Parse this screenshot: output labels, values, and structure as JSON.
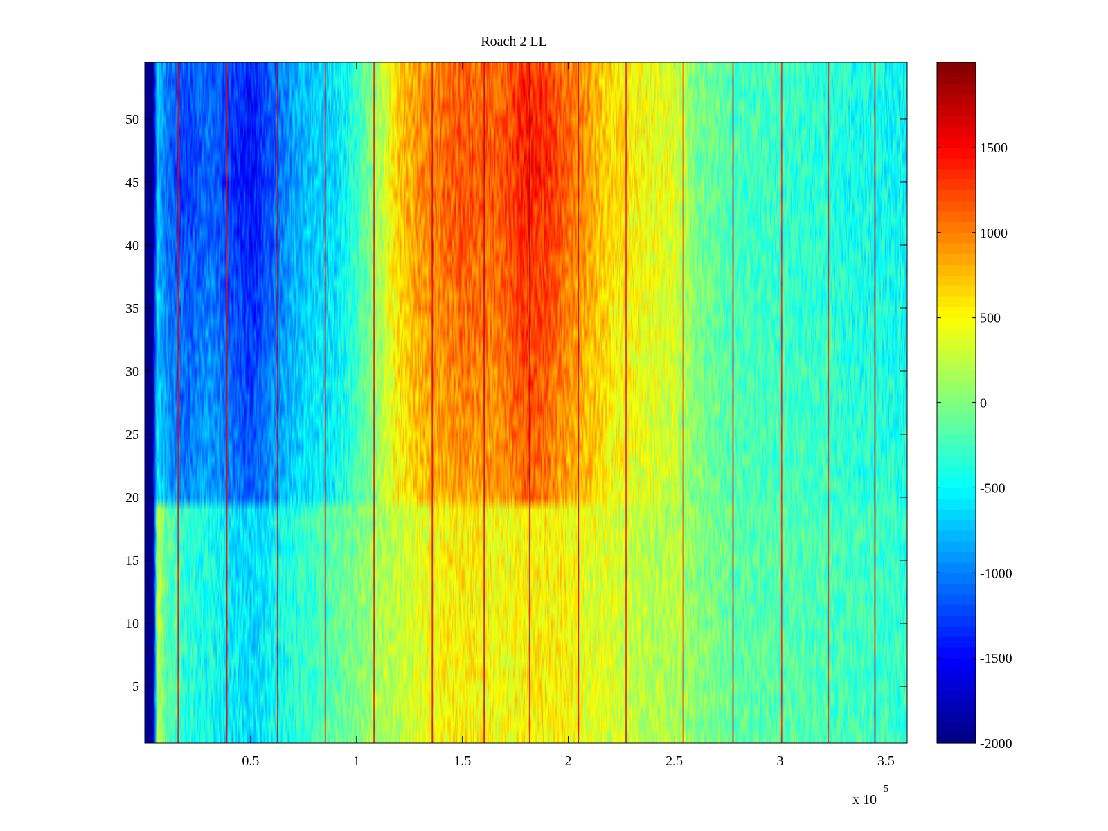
{
  "chart_data": {
    "type": "heatmap",
    "title": "Roach 2 LL",
    "xlabel": "",
    "ylabel": "",
    "x_exponent_label": "x 10",
    "x_exponent_power": "5",
    "xlim": [
      0,
      3.6
    ],
    "ylim": [
      0.5,
      54.5
    ],
    "rows": 54,
    "columns": 720,
    "colormap": "jet",
    "clim": [
      -2000,
      2000
    ],
    "xticks": [
      {
        "value": 0.5,
        "label": "0.5"
      },
      {
        "value": 1,
        "label": "1"
      },
      {
        "value": 1.5,
        "label": "1.5"
      },
      {
        "value": 2,
        "label": "2"
      },
      {
        "value": 2.5,
        "label": "2.5"
      },
      {
        "value": 3,
        "label": "3"
      },
      {
        "value": 3.5,
        "label": "3.5"
      }
    ],
    "yticks": [
      {
        "value": 5,
        "label": "5"
      },
      {
        "value": 10,
        "label": "10"
      },
      {
        "value": 15,
        "label": "15"
      },
      {
        "value": 20,
        "label": "20"
      },
      {
        "value": 25,
        "label": "25"
      },
      {
        "value": 30,
        "label": "30"
      },
      {
        "value": 35,
        "label": "35"
      },
      {
        "value": 40,
        "label": "40"
      },
      {
        "value": 45,
        "label": "45"
      },
      {
        "value": 50,
        "label": "50"
      }
    ],
    "colorbar_ticks": [
      {
        "value": -2000,
        "label": "-2000"
      },
      {
        "value": -1500,
        "label": "-1500"
      },
      {
        "value": -1000,
        "label": "-1000"
      },
      {
        "value": -500,
        "label": "-500"
      },
      {
        "value": 0,
        "label": "0"
      },
      {
        "value": 500,
        "label": "500"
      },
      {
        "value": 1000,
        "label": "1000"
      },
      {
        "value": 1500,
        "label": "1500"
      }
    ],
    "column_profile": {
      "x": [
        0,
        0.04,
        0.06,
        0.1,
        0.2,
        0.3,
        0.4,
        0.5,
        0.6,
        0.7,
        0.8,
        0.9,
        1.0,
        1.1,
        1.2,
        1.3,
        1.4,
        1.5,
        1.6,
        1.7,
        1.8,
        1.9,
        2.0,
        2.1,
        2.2,
        2.3,
        2.4,
        2.5,
        2.6,
        2.8,
        3.0,
        3.2,
        3.4,
        3.6
      ],
      "lower_rows_value": [
        -2000,
        -2000,
        300,
        -150,
        -350,
        -400,
        -550,
        -650,
        -500,
        -350,
        -250,
        -150,
        0,
        150,
        250,
        400,
        500,
        550,
        500,
        450,
        500,
        550,
        500,
        400,
        350,
        250,
        200,
        200,
        50,
        -150,
        -150,
        -200,
        -250,
        -300
      ],
      "upper_rows_value": [
        -2000,
        -2000,
        -700,
        -1100,
        -1300,
        -1100,
        -1300,
        -1500,
        -1200,
        -900,
        -700,
        -650,
        -300,
        150,
        700,
        950,
        1100,
        1200,
        1150,
        1200,
        1450,
        1350,
        1100,
        900,
        650,
        550,
        450,
        400,
        0,
        -250,
        -300,
        -350,
        -450,
        -500
      ]
    },
    "row_split_at": 19.5,
    "upper_rows_peak_row": 46,
    "cell_noise_amplitude": 280,
    "stripe_columns": [
      {
        "x": 0.155,
        "value": 1700
      },
      {
        "x": 0.385,
        "value": 1700
      },
      {
        "x": 0.625,
        "value": 1800
      },
      {
        "x": 0.85,
        "value": 1600
      },
      {
        "x": 1.08,
        "value": 1800
      },
      {
        "x": 1.355,
        "value": 1800
      },
      {
        "x": 1.6,
        "value": 1900
      },
      {
        "x": 1.815,
        "value": 1900
      },
      {
        "x": 2.045,
        "value": 1800
      },
      {
        "x": 2.27,
        "value": 1700
      },
      {
        "x": 2.545,
        "value": 1700
      },
      {
        "x": 2.775,
        "value": 1600
      },
      {
        "x": 3.005,
        "value": 1600
      },
      {
        "x": 3.225,
        "value": 1600
      },
      {
        "x": 3.445,
        "value": 1700
      }
    ]
  }
}
